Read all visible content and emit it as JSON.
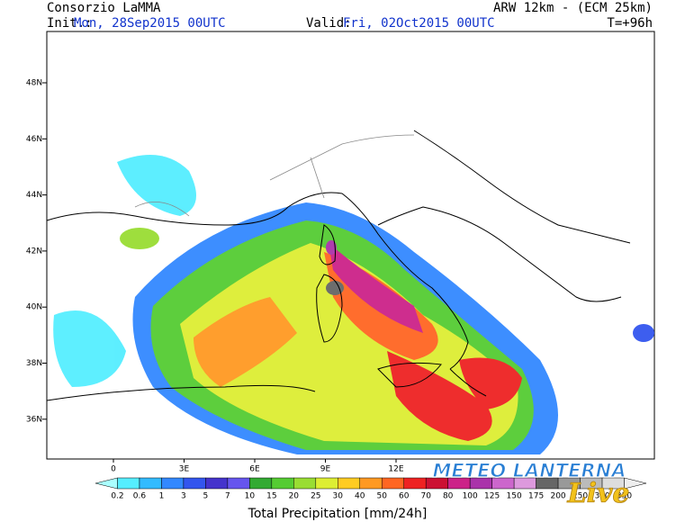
{
  "header": {
    "source": "Consorzio LaMMA",
    "model": "ARW 12km - (ECM 25km)",
    "init_prefix": "Init.:",
    "init_value": "Mon, 28Sep2015 00UTC",
    "valid_prefix": "Valid:",
    "valid_value": "Fri, 02Oct2015 00UTC",
    "lead_time": "T=+96h"
  },
  "map": {
    "lat_labels": [
      "48N",
      "46N",
      "44N",
      "42N",
      "40N",
      "38N",
      "36N"
    ],
    "lon_labels": [
      "0",
      "3E",
      "6E",
      "9E",
      "12E"
    ]
  },
  "colorbar": {
    "title": "Total Precipitation [mm/24h]",
    "labels": [
      "0.2",
      "0.6",
      "1",
      "3",
      "5",
      "7",
      "10",
      "15",
      "20",
      "25",
      "30",
      "40",
      "50",
      "60",
      "70",
      "80",
      "100",
      "125",
      "150",
      "175",
      "200",
      "250",
      "300",
      "350"
    ],
    "colors": [
      "#aaffff",
      "#55eeff",
      "#33bbff",
      "#3388ff",
      "#3355ee",
      "#4433cc",
      "#6655ee",
      "#33aa33",
      "#55cc33",
      "#99dd33",
      "#ddee33",
      "#ffcc22",
      "#ff9922",
      "#ff6622",
      "#ee2222",
      "#cc1133",
      "#cc2288",
      "#aa33aa",
      "#cc66cc",
      "#dd99dd",
      "#666666",
      "#999999",
      "#bbbbbb",
      "#dddddd",
      "#eeeeee"
    ]
  },
  "watermark": {
    "brand": "METEO LANTERNA",
    "script": "Live"
  }
}
